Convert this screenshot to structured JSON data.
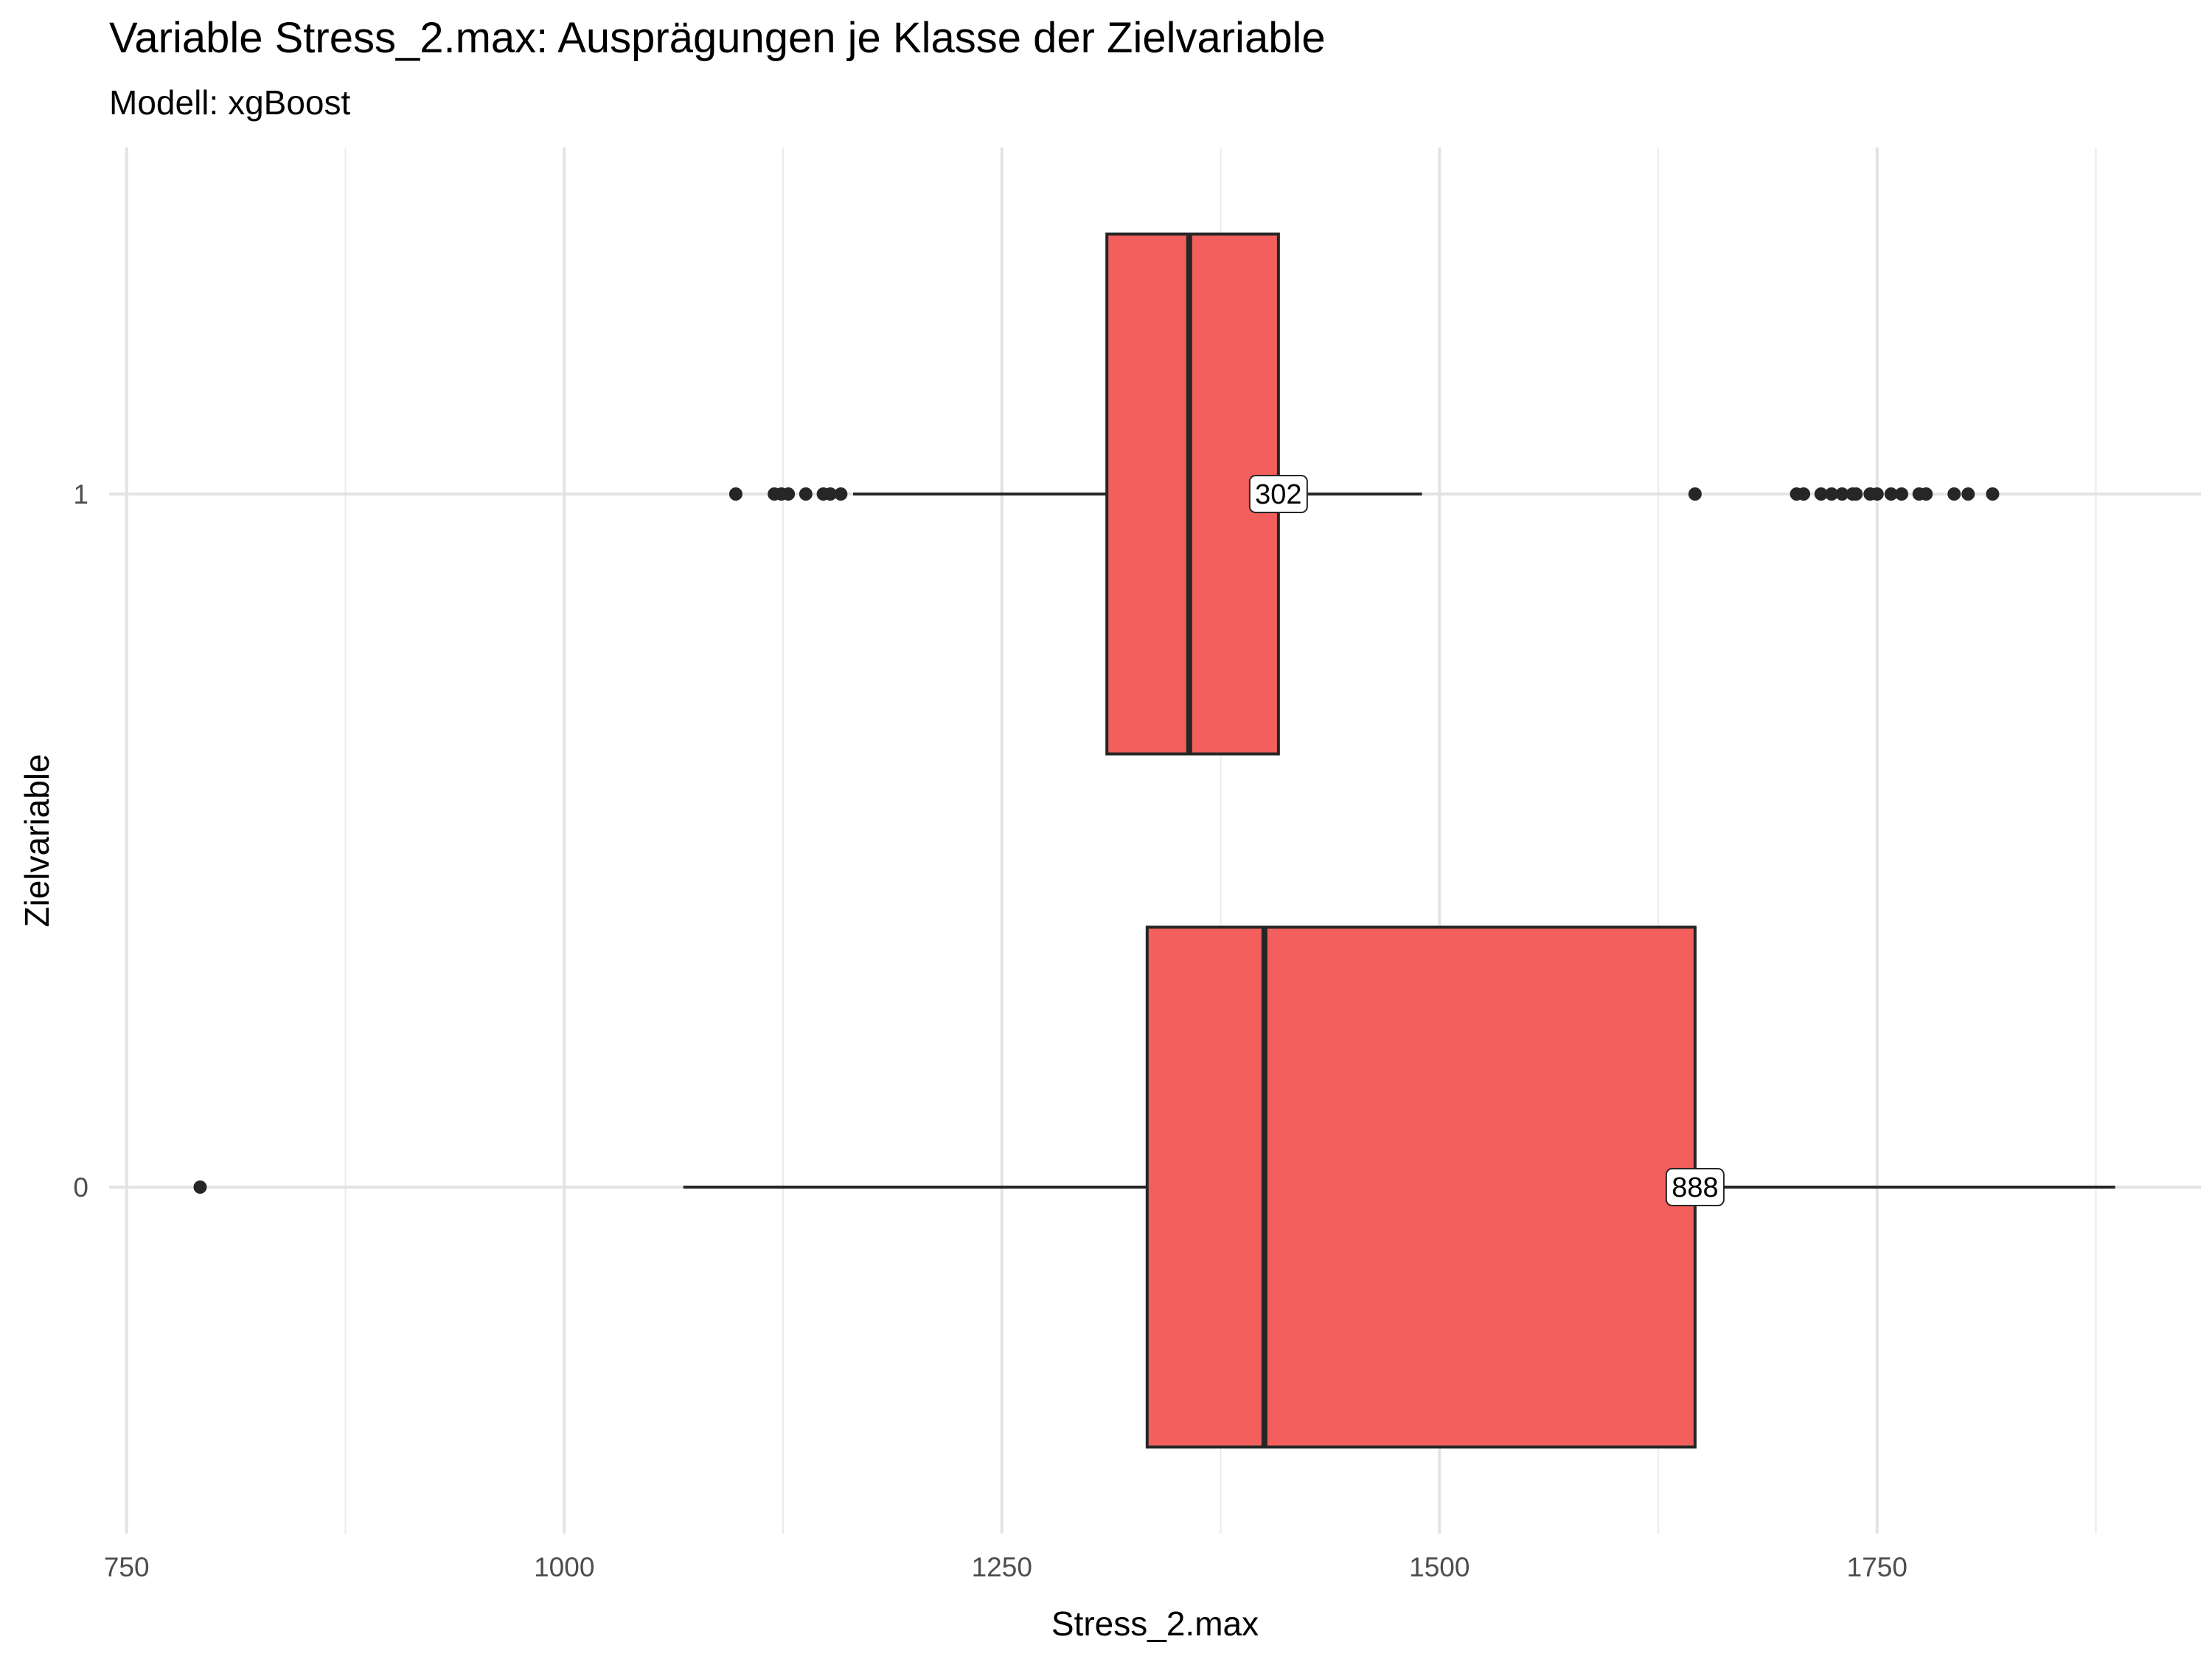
{
  "chart_data": {
    "type": "boxplot",
    "orientation": "horizontal",
    "title": "Variable Stress_2.max: Ausprägungen je Klasse der Zielvariable",
    "subtitle": "Modell: xgBoost",
    "xlabel": "Stress_2.max",
    "ylabel": "Zielvariable",
    "xlim": [
      740,
      1935
    ],
    "x_ticks": [
      750,
      1000,
      1250,
      1500,
      1750
    ],
    "x_tick_labels": [
      "750",
      "1000",
      "1250",
      "1500",
      "1750"
    ],
    "categories": [
      "0",
      "1"
    ],
    "grid": true,
    "box_color": "#f25f5c",
    "outline_color": "#262626",
    "boxes": [
      {
        "category": "0",
        "count_label": "888",
        "whisker_low": 1068,
        "q1": 1333,
        "median": 1400,
        "q3": 1646,
        "whisker_high": 1886,
        "outliers": [
          792
        ]
      },
      {
        "category": "1",
        "count_label": "302",
        "whisker_low": 1165,
        "q1": 1310,
        "median": 1357,
        "q3": 1408,
        "whisker_high": 1490,
        "outliers": [
          1098,
          1120,
          1124,
          1128,
          1138,
          1148,
          1152,
          1158,
          1646,
          1704,
          1708,
          1718,
          1724,
          1730,
          1736,
          1738,
          1746,
          1750,
          1758,
          1764,
          1774,
          1778,
          1794,
          1802,
          1816
        ]
      }
    ]
  }
}
